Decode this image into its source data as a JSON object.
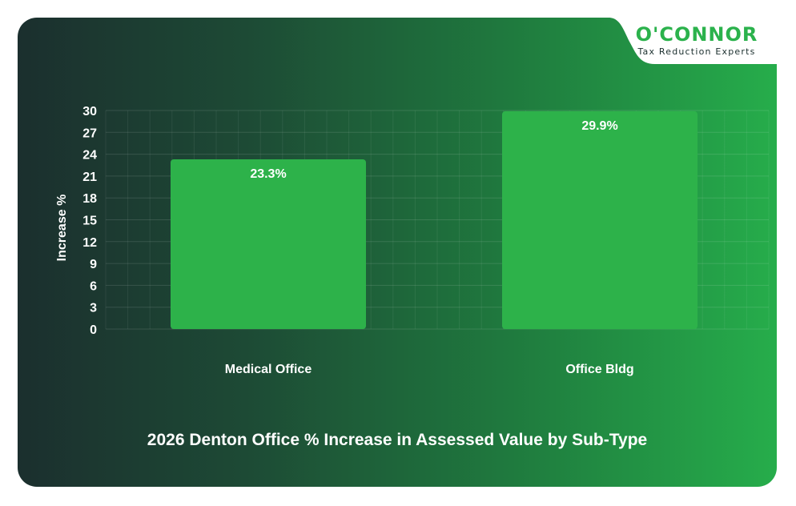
{
  "logo": {
    "name": "O'CONNOR",
    "tagline": "Tax Reduction Experts"
  },
  "colors": {
    "bar": "#2db24a",
    "logo_green": "#2bb24c",
    "text": "#ffffff"
  },
  "chart_data": {
    "type": "bar",
    "title": "2026 Denton Office % Increase in Assessed Value by Sub-Type",
    "xlabel": "",
    "ylabel": "Increase %",
    "categories": [
      "Medical Office",
      "Office Bldg"
    ],
    "values": [
      23.3,
      29.9
    ],
    "value_labels": [
      "23.3%",
      "29.9%"
    ],
    "yticks": [
      0,
      3,
      6,
      9,
      12,
      15,
      18,
      21,
      24,
      27,
      30
    ],
    "ylim": [
      0,
      30
    ],
    "grid": true,
    "legend": "none"
  }
}
